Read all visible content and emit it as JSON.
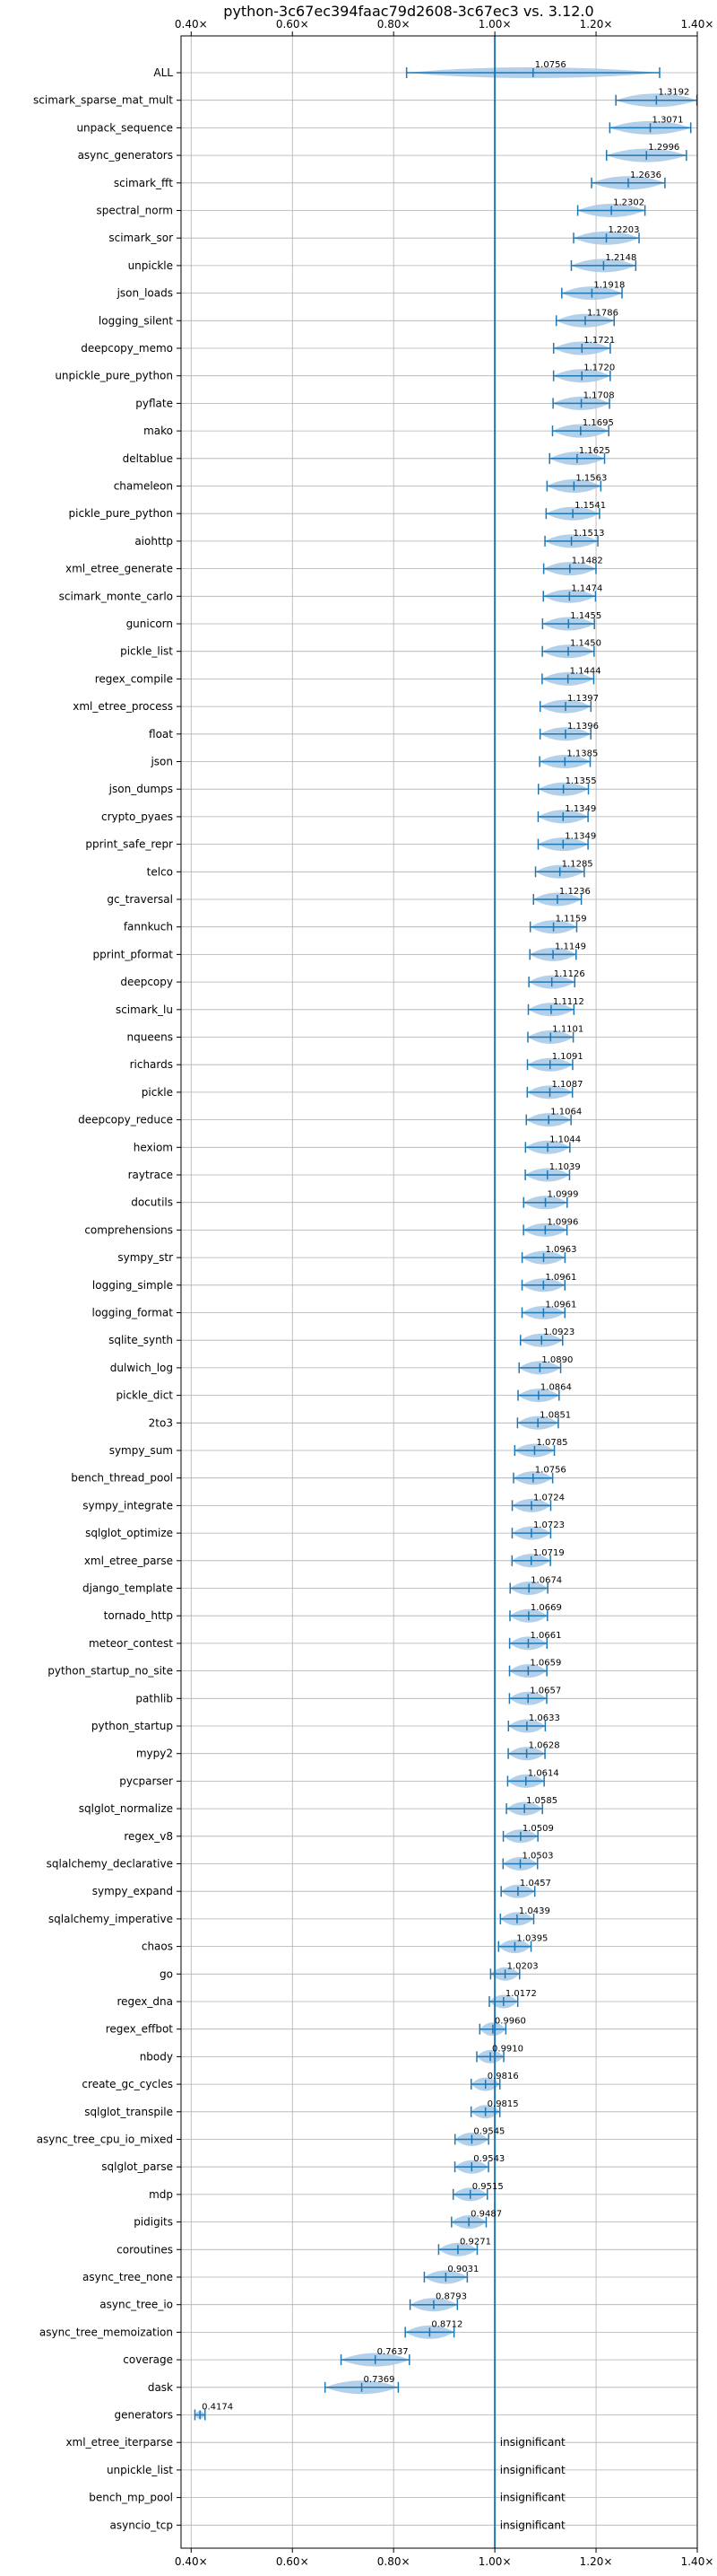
{
  "chart_data": {
    "type": "violin",
    "title": "python-3c67ec394faac79d2608-3c67ec3 vs. 3.12.0",
    "xlim": [
      0.38,
      1.4
    ],
    "x_ticks": [
      {
        "value": 0.4,
        "label": "0.40×"
      },
      {
        "value": 0.6,
        "label": "0.60×"
      },
      {
        "value": 0.8,
        "label": "0.80×"
      },
      {
        "value": 1.0,
        "label": "1.00×"
      },
      {
        "value": 1.2,
        "label": "1.20×"
      },
      {
        "value": 1.4,
        "label": "1.40×"
      }
    ],
    "reference_line": 1.0,
    "grid": true,
    "insignificant_label": "insignificant",
    "benchmarks": [
      {
        "name": "ALL",
        "mean": 1.0756,
        "label": "1.0756"
      },
      {
        "name": "scimark_sparse_mat_mult",
        "mean": 1.3192,
        "label": "1.3192"
      },
      {
        "name": "unpack_sequence",
        "mean": 1.3071,
        "label": "1.3071"
      },
      {
        "name": "async_generators",
        "mean": 1.2996,
        "label": "1.2996"
      },
      {
        "name": "scimark_fft",
        "mean": 1.2636,
        "label": "1.2636"
      },
      {
        "name": "spectral_norm",
        "mean": 1.2302,
        "label": "1.2302"
      },
      {
        "name": "scimark_sor",
        "mean": 1.2203,
        "label": "1.2203"
      },
      {
        "name": "unpickle",
        "mean": 1.2148,
        "label": "1.2148"
      },
      {
        "name": "json_loads",
        "mean": 1.1918,
        "label": "1.1918"
      },
      {
        "name": "logging_silent",
        "mean": 1.1786,
        "label": "1.1786"
      },
      {
        "name": "deepcopy_memo",
        "mean": 1.1721,
        "label": "1.1721"
      },
      {
        "name": "unpickle_pure_python",
        "mean": 1.172,
        "label": "1.1720"
      },
      {
        "name": "pyflate",
        "mean": 1.1708,
        "label": "1.1708"
      },
      {
        "name": "mako",
        "mean": 1.1695,
        "label": "1.1695"
      },
      {
        "name": "deltablue",
        "mean": 1.1625,
        "label": "1.1625"
      },
      {
        "name": "chameleon",
        "mean": 1.1563,
        "label": "1.1563"
      },
      {
        "name": "pickle_pure_python",
        "mean": 1.1541,
        "label": "1.1541"
      },
      {
        "name": "aiohttp",
        "mean": 1.1513,
        "label": "1.1513"
      },
      {
        "name": "xml_etree_generate",
        "mean": 1.1482,
        "label": "1.1482"
      },
      {
        "name": "scimark_monte_carlo",
        "mean": 1.1474,
        "label": "1.1474"
      },
      {
        "name": "gunicorn",
        "mean": 1.1455,
        "label": "1.1455"
      },
      {
        "name": "pickle_list",
        "mean": 1.145,
        "label": "1.1450"
      },
      {
        "name": "regex_compile",
        "mean": 1.1444,
        "label": "1.1444"
      },
      {
        "name": "xml_etree_process",
        "mean": 1.1397,
        "label": "1.1397"
      },
      {
        "name": "float",
        "mean": 1.1396,
        "label": "1.1396"
      },
      {
        "name": "json",
        "mean": 1.1385,
        "label": "1.1385"
      },
      {
        "name": "json_dumps",
        "mean": 1.1355,
        "label": "1.1355"
      },
      {
        "name": "crypto_pyaes",
        "mean": 1.1349,
        "label": "1.1349"
      },
      {
        "name": "pprint_safe_repr",
        "mean": 1.1349,
        "label": "1.1349"
      },
      {
        "name": "telco",
        "mean": 1.1285,
        "label": "1.1285"
      },
      {
        "name": "gc_traversal",
        "mean": 1.1236,
        "label": "1.1236"
      },
      {
        "name": "fannkuch",
        "mean": 1.1159,
        "label": "1.1159"
      },
      {
        "name": "pprint_pformat",
        "mean": 1.1149,
        "label": "1.1149"
      },
      {
        "name": "deepcopy",
        "mean": 1.1126,
        "label": "1.1126"
      },
      {
        "name": "scimark_lu",
        "mean": 1.1112,
        "label": "1.1112"
      },
      {
        "name": "nqueens",
        "mean": 1.1101,
        "label": "1.1101"
      },
      {
        "name": "richards",
        "mean": 1.1091,
        "label": "1.1091"
      },
      {
        "name": "pickle",
        "mean": 1.1087,
        "label": "1.1087"
      },
      {
        "name": "deepcopy_reduce",
        "mean": 1.1064,
        "label": "1.1064"
      },
      {
        "name": "hexiom",
        "mean": 1.1044,
        "label": "1.1044"
      },
      {
        "name": "raytrace",
        "mean": 1.1039,
        "label": "1.1039"
      },
      {
        "name": "docutils",
        "mean": 1.0999,
        "label": "1.0999"
      },
      {
        "name": "comprehensions",
        "mean": 1.0996,
        "label": "1.0996"
      },
      {
        "name": "sympy_str",
        "mean": 1.0963,
        "label": "1.0963"
      },
      {
        "name": "logging_simple",
        "mean": 1.0961,
        "label": "1.0961"
      },
      {
        "name": "logging_format",
        "mean": 1.0961,
        "label": "1.0961"
      },
      {
        "name": "sqlite_synth",
        "mean": 1.0923,
        "label": "1.0923"
      },
      {
        "name": "dulwich_log",
        "mean": 1.089,
        "label": "1.0890"
      },
      {
        "name": "pickle_dict",
        "mean": 1.0864,
        "label": "1.0864"
      },
      {
        "name": "2to3",
        "mean": 1.0851,
        "label": "1.0851"
      },
      {
        "name": "sympy_sum",
        "mean": 1.0785,
        "label": "1.0785"
      },
      {
        "name": "bench_thread_pool",
        "mean": 1.0756,
        "label": "1.0756"
      },
      {
        "name": "sympy_integrate",
        "mean": 1.0724,
        "label": "1.0724"
      },
      {
        "name": "sqlglot_optimize",
        "mean": 1.0723,
        "label": "1.0723"
      },
      {
        "name": "xml_etree_parse",
        "mean": 1.0719,
        "label": "1.0719"
      },
      {
        "name": "django_template",
        "mean": 1.0674,
        "label": "1.0674"
      },
      {
        "name": "tornado_http",
        "mean": 1.0669,
        "label": "1.0669"
      },
      {
        "name": "meteor_contest",
        "mean": 1.0661,
        "label": "1.0661"
      },
      {
        "name": "python_startup_no_site",
        "mean": 1.0659,
        "label": "1.0659"
      },
      {
        "name": "pathlib",
        "mean": 1.0657,
        "label": "1.0657"
      },
      {
        "name": "python_startup",
        "mean": 1.0633,
        "label": "1.0633"
      },
      {
        "name": "mypy2",
        "mean": 1.0628,
        "label": "1.0628"
      },
      {
        "name": "pycparser",
        "mean": 1.0614,
        "label": "1.0614"
      },
      {
        "name": "sqlglot_normalize",
        "mean": 1.0585,
        "label": "1.0585"
      },
      {
        "name": "regex_v8",
        "mean": 1.0509,
        "label": "1.0509"
      },
      {
        "name": "sqlalchemy_declarative",
        "mean": 1.0503,
        "label": "1.0503"
      },
      {
        "name": "sympy_expand",
        "mean": 1.0457,
        "label": "1.0457"
      },
      {
        "name": "sqlalchemy_imperative",
        "mean": 1.0439,
        "label": "1.0439"
      },
      {
        "name": "chaos",
        "mean": 1.0395,
        "label": "1.0395"
      },
      {
        "name": "go",
        "mean": 1.0203,
        "label": "1.0203"
      },
      {
        "name": "regex_dna",
        "mean": 1.0172,
        "label": "1.0172"
      },
      {
        "name": "regex_effbot",
        "mean": 0.996,
        "label": "0.9960"
      },
      {
        "name": "nbody",
        "mean": 0.991,
        "label": "0.9910"
      },
      {
        "name": "create_gc_cycles",
        "mean": 0.9816,
        "label": "0.9816"
      },
      {
        "name": "sqlglot_transpile",
        "mean": 0.9815,
        "label": "0.9815"
      },
      {
        "name": "async_tree_cpu_io_mixed",
        "mean": 0.9545,
        "label": "0.9545"
      },
      {
        "name": "sqlglot_parse",
        "mean": 0.9543,
        "label": "0.9543"
      },
      {
        "name": "mdp",
        "mean": 0.9515,
        "label": "0.9515"
      },
      {
        "name": "pidigits",
        "mean": 0.9487,
        "label": "0.9487"
      },
      {
        "name": "coroutines",
        "mean": 0.9271,
        "label": "0.9271"
      },
      {
        "name": "async_tree_none",
        "mean": 0.9031,
        "label": "0.9031"
      },
      {
        "name": "async_tree_io",
        "mean": 0.8793,
        "label": "0.8793"
      },
      {
        "name": "async_tree_memoization",
        "mean": 0.8712,
        "label": "0.8712"
      },
      {
        "name": "coverage",
        "mean": 0.7637,
        "label": "0.7637"
      },
      {
        "name": "dask",
        "mean": 0.7369,
        "label": "0.7369"
      },
      {
        "name": "generators",
        "mean": 0.4174,
        "label": "0.4174"
      },
      {
        "name": "xml_etree_iterparse",
        "mean": null,
        "insignificant": true
      },
      {
        "name": "unpickle_list",
        "mean": null,
        "insignificant": true
      },
      {
        "name": "bench_mp_pool",
        "mean": null,
        "insignificant": true
      },
      {
        "name": "asyncio_tcp",
        "mean": null,
        "insignificant": true
      }
    ]
  },
  "colors": {
    "violin": "#a6c8e6",
    "marker": "#1f77b4",
    "grid": "#b0b0b0",
    "axis": "#000000"
  }
}
